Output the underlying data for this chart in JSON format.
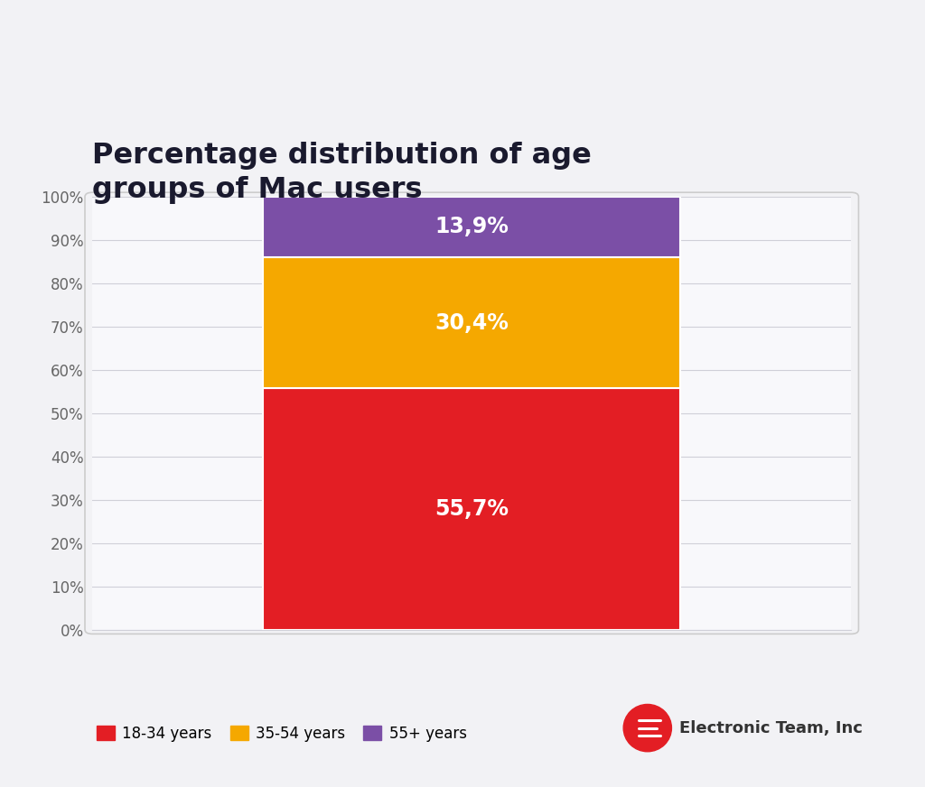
{
  "title": "Percentage distribution of age\ngroups of Mac users",
  "title_fontsize": 23,
  "title_fontweight": "bold",
  "title_color": "#1a1a2e",
  "background_color": "#f2f2f5",
  "plot_bg_color": "#f8f8fb",
  "segments": [
    {
      "label": "18-34 years",
      "value": 55.7,
      "color": "#e31e24"
    },
    {
      "label": "35-54 years",
      "value": 30.4,
      "color": "#f5a800"
    },
    {
      "label": "55+ years",
      "value": 13.9,
      "color": "#7b4fa6"
    }
  ],
  "label_color": "#ffffff",
  "label_fontsize": 17,
  "label_fontweight": "bold",
  "ytick_labels": [
    "0%",
    "10%",
    "20%",
    "30%",
    "40%",
    "50%",
    "60%",
    "70%",
    "80%",
    "90%",
    "100%"
  ],
  "ytick_values": [
    0,
    10,
    20,
    30,
    40,
    50,
    60,
    70,
    80,
    90,
    100
  ],
  "ylim": [
    0,
    100
  ],
  "grid_color": "#d0d0d8",
  "grid_linewidth": 0.8,
  "bar_width": 0.55,
  "legend_labels": [
    "18-34 years",
    "35-54 years",
    "55+ years"
  ],
  "legend_colors": [
    "#e31e24",
    "#f5a800",
    "#7b4fa6"
  ],
  "logo_text": "Electronic Team, Inc",
  "logo_color": "#e31e24",
  "logo_fontsize": 13,
  "logo_fontweight": "bold",
  "decimal_sep": ","
}
